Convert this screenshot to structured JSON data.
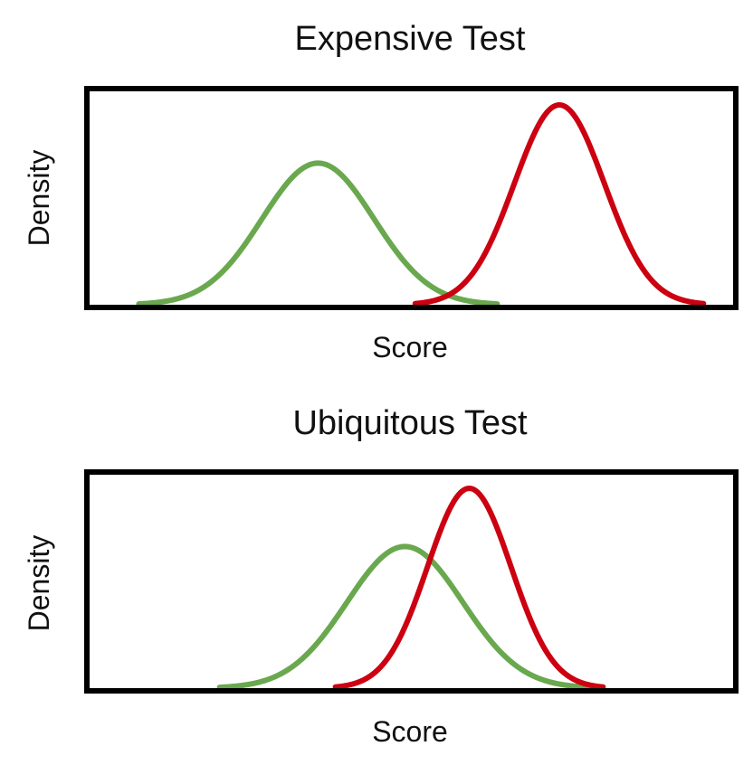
{
  "colors": {
    "green": "#6aa84f",
    "red": "#cc0011"
  },
  "chart_data": [
    {
      "type": "line",
      "title": "Expensive Test",
      "xlabel": "Score",
      "ylabel": "Density",
      "xlim": [
        0,
        100
      ],
      "ylim": [
        0,
        1.1
      ],
      "grid": false,
      "series": [
        {
          "color": "green",
          "mean": 35.5,
          "sd": 8.7,
          "peak": 0.73,
          "x": [
            0,
            100
          ],
          "y": [
            0,
            1.1
          ]
        },
        {
          "color": "red",
          "mean": 73.0,
          "sd": 7.0,
          "peak": 1.03,
          "x": [
            0,
            100
          ],
          "y": [
            0,
            1.1
          ]
        }
      ]
    },
    {
      "type": "line",
      "title": "Ubiquitous Test",
      "xlabel": "Score",
      "ylabel": "Density",
      "xlim": [
        0,
        100
      ],
      "ylim": [
        0,
        1.1
      ],
      "grid": false,
      "series": [
        {
          "color": "green",
          "mean": 49.0,
          "sd": 9.0,
          "peak": 0.73,
          "x": [
            0,
            100
          ],
          "y": [
            0,
            1.1
          ]
        },
        {
          "color": "red",
          "mean": 59.0,
          "sd": 6.5,
          "peak": 1.03,
          "x": [
            0,
            100
          ],
          "y": [
            0,
            1.1
          ]
        }
      ]
    }
  ]
}
